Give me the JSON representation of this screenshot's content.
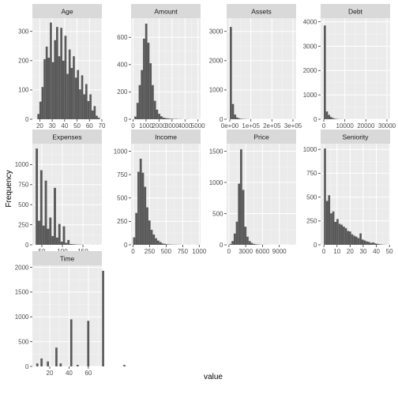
{
  "chart_data": {
    "type": "bar",
    "xlabel": "value",
    "ylabel": "Frequency",
    "grid": true,
    "bar_color": "#595959",
    "panel_background": "#ebebeb",
    "strip_background": "#d9d9d9",
    "facets": [
      {
        "title": "Age",
        "xlim": [
          14,
          70
        ],
        "ylim": [
          0,
          345
        ],
        "x_ticks": [
          20,
          30,
          40,
          50,
          60,
          70
        ],
        "x_tick_labels": [
          "20",
          "30",
          "40",
          "50",
          "60",
          "70"
        ],
        "y_ticks": [
          0,
          100,
          200,
          300
        ],
        "y_tick_labels": [
          "0",
          "100",
          "200",
          "300"
        ],
        "bins": {
          "start": 18,
          "width": 1.68,
          "values": [
            18,
            60,
            110,
            205,
            248,
            210,
            330,
            195,
            270,
            315,
            215,
            312,
            200,
            285,
            155,
            238,
            175,
            215,
            142,
            168,
            102,
            150,
            85,
            120,
            62,
            85,
            30,
            45,
            12,
            5
          ]
        }
      },
      {
        "title": "Amount",
        "xlim": [
          -150,
          5200
        ],
        "ylim": [
          0,
          740
        ],
        "x_ticks": [
          0,
          1000,
          2000,
          3000,
          4000,
          5000
        ],
        "x_tick_labels": [
          "0",
          "1000",
          "2000",
          "3000",
          "4000",
          "5000"
        ],
        "y_ticks": [
          0,
          200,
          400,
          600
        ],
        "y_tick_labels": [
          "0",
          "200",
          "400",
          "600"
        ],
        "bins": {
          "start": 100,
          "width": 166.7,
          "values": [
            20,
            120,
            250,
            360,
            590,
            700,
            560,
            410,
            250,
            135,
            70,
            40,
            22,
            12,
            8,
            6,
            4,
            3,
            2,
            2,
            1,
            1,
            0,
            0,
            1
          ]
        }
      },
      {
        "title": "Assets",
        "xlim": [
          -15000,
          315000
        ],
        "ylim": [
          0,
          3450
        ],
        "x_ticks": [
          0,
          100000,
          200000,
          300000
        ],
        "x_tick_labels": [
          "0e+00",
          "1e+05",
          "2e+05",
          "3e+05"
        ],
        "y_ticks": [
          0,
          1000,
          2000,
          3000
        ],
        "y_tick_labels": [
          "0",
          "1000",
          "2000",
          "3000"
        ],
        "bins": {
          "start": 0,
          "width": 10000,
          "values": [
            3150,
            520,
            160,
            60,
            30,
            15,
            10,
            5,
            3,
            2,
            1,
            1,
            0,
            0,
            0,
            0,
            0,
            0,
            0,
            0,
            0,
            0,
            0,
            0,
            0,
            0,
            0,
            0,
            0,
            1
          ]
        }
      },
      {
        "title": "Debt",
        "xlim": [
          -1500,
          31500
        ],
        "ylim": [
          0,
          4150
        ],
        "x_ticks": [
          0,
          10000,
          20000,
          30000
        ],
        "x_tick_labels": [
          "0",
          "10000",
          "20000",
          "30000"
        ],
        "y_ticks": [
          0,
          1000,
          2000,
          3000,
          4000
        ],
        "y_tick_labels": [
          "0",
          "1000",
          "2000",
          "3000",
          "4000"
        ],
        "bins": {
          "start": 0,
          "width": 1000,
          "values": [
            3850,
            320,
            180,
            90,
            45,
            20,
            10,
            5,
            3,
            2,
            1,
            1,
            0,
            0,
            0,
            0,
            0,
            0,
            0,
            0,
            0,
            0,
            0,
            0,
            0,
            0,
            0,
            0,
            0,
            1
          ]
        }
      },
      {
        "title": "Expenses",
        "xlim": [
          27,
          196
        ],
        "ylim": [
          0,
          1260
        ],
        "x_ticks": [
          50,
          100,
          150
        ],
        "x_tick_labels": [
          "50",
          "100",
          "150"
        ],
        "y_ticks": [
          0,
          250,
          500,
          750,
          1000
        ],
        "y_tick_labels": [
          "0",
          "250",
          "500",
          "750",
          "1000"
        ],
        "bins": {
          "start": 35,
          "width": 5.5,
          "values": [
            1200,
            300,
            930,
            240,
            800,
            200,
            340,
            110,
            710,
            90,
            260,
            40,
            230,
            25,
            60,
            10,
            8,
            5,
            3,
            3,
            2,
            0,
            0,
            0,
            0,
            1,
            0,
            1
          ]
        }
      },
      {
        "title": "Income",
        "xlim": [
          -30,
          1020
        ],
        "ylim": [
          0,
          1080
        ],
        "x_ticks": [
          0,
          250,
          500,
          750,
          1000
        ],
        "x_tick_labels": [
          "0",
          "250",
          "500",
          "750",
          "1000"
        ],
        "y_ticks": [
          0,
          250,
          500,
          750,
          1000
        ],
        "y_tick_labels": [
          "0",
          "250",
          "500",
          "750",
          "1000"
        ],
        "bins": {
          "start": 0,
          "width": 33,
          "values": [
            80,
            340,
            780,
            920,
            770,
            620,
            400,
            260,
            160,
            110,
            70,
            45,
            30,
            15,
            10,
            6,
            4,
            3,
            2,
            2,
            1,
            1,
            0,
            0,
            0,
            1,
            0,
            0,
            0,
            1
          ]
        }
      },
      {
        "title": "Price",
        "xlim": [
          -400,
          12000
        ],
        "ylim": [
          0,
          1620
        ],
        "x_ticks": [
          0,
          3000,
          6000,
          9000
        ],
        "x_tick_labels": [
          "0",
          "3000",
          "6000",
          "9000"
        ],
        "y_ticks": [
          0,
          500,
          1000,
          1500
        ],
        "y_tick_labels": [
          "0",
          "500",
          "1000",
          "1500"
        ],
        "bins": {
          "start": 100,
          "width": 380,
          "values": [
            15,
            60,
            180,
            370,
            980,
            1530,
            880,
            290,
            130,
            60,
            30,
            15,
            8,
            5,
            3,
            2,
            1,
            1,
            0,
            0,
            0,
            0,
            0,
            0,
            0,
            0,
            0,
            0,
            0,
            1
          ]
        }
      },
      {
        "title": "Seniority",
        "xlim": [
          -2.5,
          50.5
        ],
        "ylim": [
          0,
          1060
        ],
        "x_ticks": [
          0,
          10,
          20,
          30,
          40,
          50
        ],
        "x_tick_labels": [
          "0",
          "10",
          "20",
          "30",
          "40",
          "50"
        ],
        "y_ticks": [
          0,
          250,
          500,
          750,
          1000
        ],
        "y_tick_labels": [
          "0",
          "250",
          "500",
          "750",
          "1000"
        ],
        "bins": {
          "start": 0,
          "width": 1.6,
          "values": [
            1010,
            460,
            520,
            330,
            350,
            240,
            270,
            220,
            210,
            190,
            175,
            145,
            140,
            110,
            95,
            85,
            70,
            120,
            55,
            45,
            35,
            30,
            20,
            25,
            15,
            10,
            6,
            4,
            2,
            1
          ]
        }
      },
      {
        "title": "Time",
        "xlim": [
          2,
          74
        ],
        "ylim": [
          0,
          2040
        ],
        "x_ticks": [
          20,
          40,
          60
        ],
        "x_tick_labels": [
          "20",
          "40",
          "60"
        ],
        "y_ticks": [
          0,
          500,
          1000,
          1500,
          2000
        ],
        "y_tick_labels": [
          "0",
          "500",
          "1000",
          "1500",
          "2000"
        ],
        "bins": {
          "start": 6,
          "width": 2.2,
          "values": [
            60,
            0,
            160,
            0,
            0,
            100,
            0,
            0,
            0,
            380,
            0,
            60,
            0,
            0,
            0,
            0,
            950,
            0,
            0,
            30,
            0,
            0,
            0,
            0,
            920,
            0,
            0,
            0,
            0,
            0,
            0,
            1930,
            0,
            0,
            0,
            0,
            0,
            0,
            0,
            0,
            0,
            30
          ]
        }
      }
    ]
  }
}
